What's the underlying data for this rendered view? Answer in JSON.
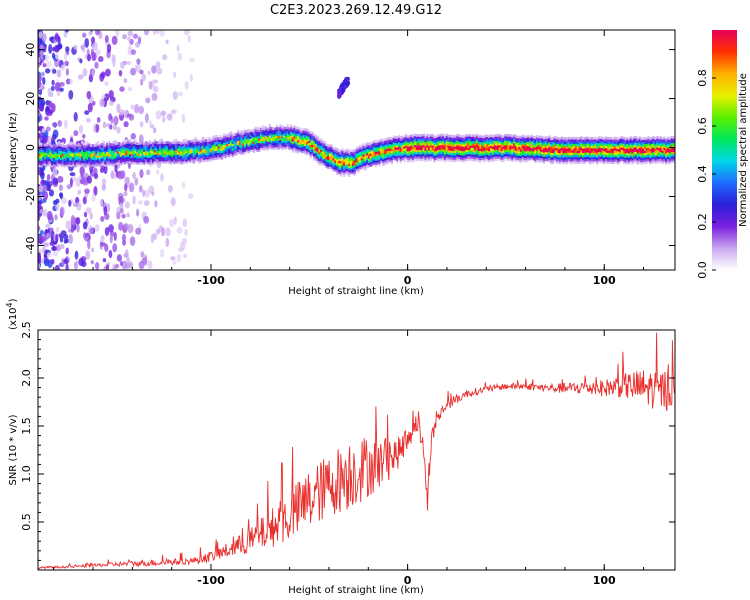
{
  "title": "C2E3.2023.269.12.49.G12",
  "colors": {
    "snr_line": "#e8302e",
    "axis": "#000000"
  },
  "chart_data": [
    {
      "type": "heatmap",
      "xlabel": "Height of straight line (km)",
      "ylabel": "Frequency (Hz)",
      "xlim": [
        -188,
        136
      ],
      "ylim": [
        -50,
        48
      ],
      "x_ticks": [
        -100,
        0,
        100
      ],
      "y_ticks": [
        -40,
        -20,
        0,
        20,
        40
      ],
      "colorbar": {
        "label": "Normalized spectral amplitude",
        "range": [
          0,
          1
        ],
        "ticks": [
          "0.0",
          "0.2",
          "0.4",
          "0.6",
          "0.8"
        ],
        "colormap": [
          "#ffffff",
          "#c9a7ee",
          "#7a1fe0",
          "#2a1fd8",
          "#1e6cff",
          "#00d8e8",
          "#00e85a",
          "#5cf000",
          "#e8f000",
          "#ffb000",
          "#ff3000",
          "#e8005a"
        ]
      },
      "ridge": {
        "description_points_x": [
          -185,
          -160,
          -140,
          -120,
          -100,
          -85,
          -70,
          -60,
          -50,
          -42,
          -35,
          -28,
          -20,
          -10,
          0,
          20,
          50,
          80,
          100,
          120,
          136
        ],
        "description_points_y": [
          -3,
          -3,
          -2,
          -2,
          -1,
          2,
          4,
          4,
          2,
          -3,
          -6,
          -6,
          -3,
          -1,
          0,
          0,
          0,
          -1,
          -1,
          -1,
          -1
        ]
      },
      "blob": {
        "x": [
          -35,
          -30
        ],
        "y": [
          22,
          28
        ]
      }
    },
    {
      "type": "line",
      "xlabel": "Height of straight line (km)",
      "ylabel": "SNR (10 * v/v)",
      "yscale_label": "(x10",
      "yscale_exp": "4",
      "yscale_close": ")",
      "xlim": [
        -188,
        136
      ],
      "ylim": [
        0,
        2.5
      ],
      "x_ticks": [
        -100,
        0,
        100
      ],
      "y_ticks": [
        0.5,
        1.0,
        1.5,
        2.0,
        2.5
      ],
      "series": [
        {
          "x": [
            -188,
            -170,
            -150,
            -130,
            -110,
            -100,
            -90,
            -80,
            -70,
            -60,
            -50,
            -40,
            -30,
            -20,
            -15,
            -10,
            -5,
            0,
            3,
            5,
            8,
            10,
            12,
            15,
            20,
            30,
            40,
            50,
            60,
            70,
            80,
            90,
            100,
            110,
            120,
            130,
            136
          ],
          "values": [
            0.02,
            0.03,
            0.05,
            0.06,
            0.08,
            0.12,
            0.18,
            0.25,
            0.35,
            0.45,
            0.6,
            0.75,
            0.85,
            0.95,
            1.0,
            1.05,
            1.15,
            1.3,
            1.45,
            1.5,
            1.25,
            0.65,
            1.3,
            1.55,
            1.7,
            1.82,
            1.87,
            1.9,
            1.9,
            1.88,
            1.87,
            1.87,
            1.86,
            1.87,
            1.82,
            1.78,
            1.8
          ],
          "noise": [
            0.01,
            0.01,
            0.02,
            0.03,
            0.03,
            0.05,
            0.08,
            0.12,
            0.18,
            0.25,
            0.3,
            0.3,
            0.35,
            0.3,
            0.25,
            0.2,
            0.15,
            0.12,
            0.1,
            0.1,
            0.1,
            0.1,
            0.1,
            0.06,
            0.05,
            0.04,
            0.03,
            0.03,
            0.03,
            0.04,
            0.05,
            0.07,
            0.08,
            0.12,
            0.18,
            0.2,
            0.2
          ]
        }
      ]
    }
  ]
}
